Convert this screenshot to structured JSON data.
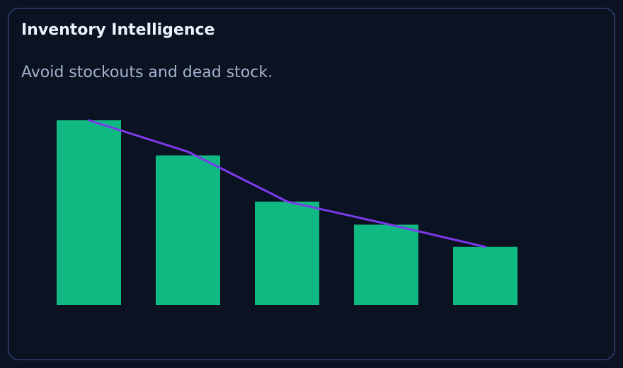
{
  "card": {
    "title": "Inventory Intelligence",
    "subtitle": "Avoid stockouts and dead stock."
  },
  "colors": {
    "background": "#0b1222",
    "border": "#3e5690",
    "bar": "#10b981",
    "line": "#7c3aed",
    "title": "#eef2fb",
    "subtitle": "#a3b3cf"
  },
  "chart_data": {
    "type": "bar",
    "categories": [
      "",
      "",
      "",
      "",
      ""
    ],
    "values": [
      100,
      81,
      56,
      43.5,
      31.5
    ],
    "series": [
      {
        "type": "bar",
        "values": [
          100,
          81,
          56,
          43.5,
          31.5
        ]
      },
      {
        "type": "line",
        "values": [
          100,
          83,
          56,
          44,
          31.5
        ]
      }
    ],
    "title": "",
    "xlabel": "",
    "ylabel": "",
    "ylim": [
      0,
      100
    ],
    "grid": false,
    "legend": "none",
    "axes_visible": false
  }
}
